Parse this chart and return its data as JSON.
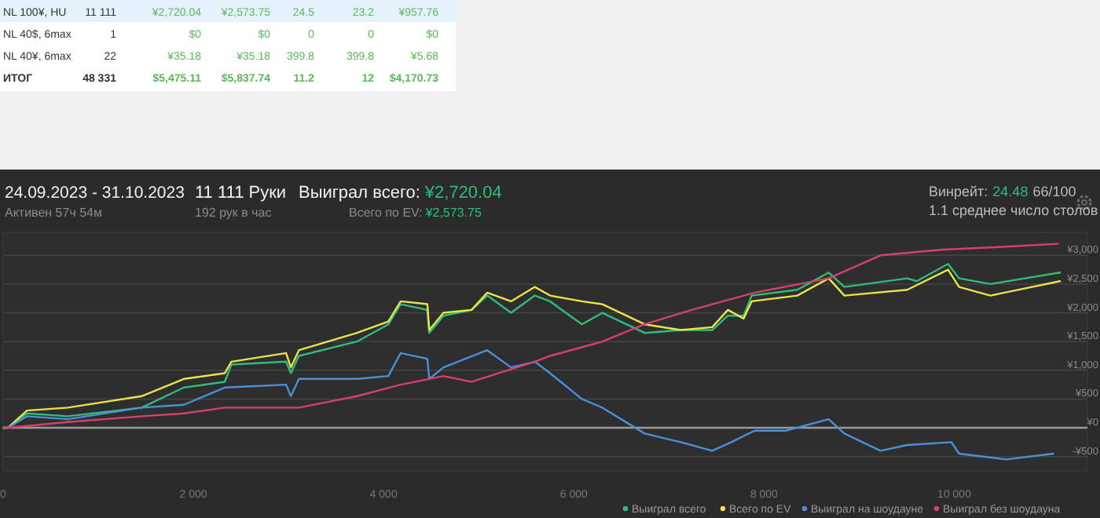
{
  "chart_data": {
    "type": "line",
    "title": "24.09.2023 - 31.10.2023",
    "annotations": [
      "Активен 57ч 54м",
      "11 111 Руки",
      "192 рук в час",
      "Выиграл всего:",
      "¥2,720.04",
      "Всего по EV:",
      "¥2,573.75",
      "Винрейт:",
      "24.48",
      "66/100",
      "1.1 среднее число столов",
      "NL 100¥, HU",
      "11 111",
      "¥2,720.04",
      "¥2,573.75",
      "24.5",
      "23.2",
      "¥957.76",
      "NL 40$, 6max",
      "1",
      "$0",
      "$0",
      "0",
      "0",
      "$0",
      "NL 40¥, 6max",
      "22",
      "¥35.18",
      "¥35.18",
      "399.8",
      "399.8",
      "¥5.68",
      "ИТОГ",
      "48 331",
      "$5,475.11",
      "$5,837.74",
      "11.2",
      "12",
      "$4,170.73"
    ],
    "xlim": [
      0,
      11400
    ],
    "xticks": [
      {
        "value": 0,
        "label": "0"
      },
      {
        "value": 2000,
        "label": "2 000"
      },
      {
        "value": 4000,
        "label": "4 000"
      },
      {
        "value": 6000,
        "label": "6 000"
      },
      {
        "value": 8000,
        "label": "8 000"
      },
      {
        "value": 10000,
        "label": "10 000"
      }
    ],
    "ylim": [
      -750,
      3400
    ],
    "yticks": [
      {
        "value": -500,
        "label": "-¥500"
      },
      {
        "value": 0,
        "label": "¥0"
      },
      {
        "value": 500,
        "label": "¥500"
      },
      {
        "value": 1000,
        "label": "¥1,000"
      },
      {
        "value": 1500,
        "label": "¥1,500"
      },
      {
        "value": 2000,
        "label": "¥2,000"
      },
      {
        "value": 2500,
        "label": "¥2,500"
      },
      {
        "value": 3000,
        "label": "¥3,000"
      }
    ],
    "grid": "y",
    "legend": "bottom right",
    "series": [
      {
        "name": "Выиграл всего",
        "color": "#2ebd7a",
        "x": [
          0,
          50,
          250,
          680,
          1455,
          1900,
          2330,
          2400,
          2975,
          3025,
          3110,
          3720,
          4050,
          4180,
          4460,
          4480,
          4630,
          4925,
          5090,
          5340,
          5590,
          5750,
          6085,
          6300,
          6745,
          7125,
          7455,
          7620,
          7785,
          7870,
          8350,
          8680,
          8845,
          9505,
          9605,
          9935,
          10050,
          10380,
          11111
        ],
        "values": [
          0,
          0,
          250,
          200,
          350,
          700,
          800,
          1100,
          1150,
          950,
          1250,
          1500,
          1800,
          2150,
          2050,
          1650,
          1950,
          2050,
          2300,
          2000,
          2300,
          2200,
          1800,
          2000,
          1650,
          1700,
          1700,
          1950,
          1950,
          2300,
          2400,
          2700,
          2450,
          2600,
          2550,
          2850,
          2600,
          2500,
          2700
        ]
      },
      {
        "name": "Всего по EV",
        "color": "#e8e44a",
        "x": [
          0,
          50,
          250,
          680,
          1455,
          1900,
          2330,
          2400,
          2975,
          3025,
          3110,
          3720,
          4050,
          4180,
          4460,
          4480,
          4630,
          4925,
          5090,
          5340,
          5590,
          5750,
          6085,
          6300,
          6745,
          7125,
          7455,
          7620,
          7785,
          7870,
          8350,
          8680,
          8845,
          9505,
          9935,
          10050,
          10380,
          11111
        ],
        "values": [
          0,
          0,
          300,
          350,
          550,
          850,
          950,
          1150,
          1300,
          1050,
          1350,
          1650,
          1850,
          2200,
          2150,
          1700,
          2000,
          2050,
          2350,
          2200,
          2450,
          2300,
          2200,
          2150,
          1800,
          1700,
          1750,
          2050,
          1900,
          2200,
          2300,
          2600,
          2300,
          2400,
          2750,
          2450,
          2300,
          2550
        ]
      },
      {
        "name": "Выиграл на шоудауне",
        "color": "#4a90d9",
        "x": [
          0,
          50,
          250,
          680,
          1455,
          1900,
          2330,
          2975,
          3025,
          3110,
          3720,
          4050,
          4180,
          4460,
          4480,
          4630,
          5090,
          5340,
          5590,
          5750,
          6085,
          6300,
          6745,
          7125,
          7455,
          7655,
          7900,
          8230,
          8680,
          8845,
          9225,
          9505,
          9970,
          10050,
          10545,
          11040
        ],
        "values": [
          0,
          0,
          200,
          150,
          350,
          400,
          700,
          750,
          550,
          850,
          850,
          900,
          1300,
          1200,
          850,
          1050,
          1350,
          1050,
          1150,
          950,
          500,
          350,
          -100,
          -250,
          -400,
          -250,
          -50,
          -50,
          150,
          -100,
          -400,
          -300,
          -250,
          -450,
          -550,
          -450
        ]
      },
      {
        "name": "Выиграл без шоудауна",
        "color": "#d6406e",
        "x": [
          0,
          50,
          680,
          1455,
          1900,
          2330,
          3110,
          3720,
          4180,
          4630,
          4925,
          5590,
          5750,
          6300,
          6745,
          7240,
          7900,
          8680,
          9225,
          9885,
          10545,
          11090
        ],
        "values": [
          0,
          0,
          100,
          200,
          250,
          350,
          350,
          550,
          750,
          900,
          800,
          1150,
          1250,
          1500,
          1800,
          2050,
          2350,
          2600,
          3000,
          3100,
          3150,
          3200
        ]
      }
    ]
  }
}
